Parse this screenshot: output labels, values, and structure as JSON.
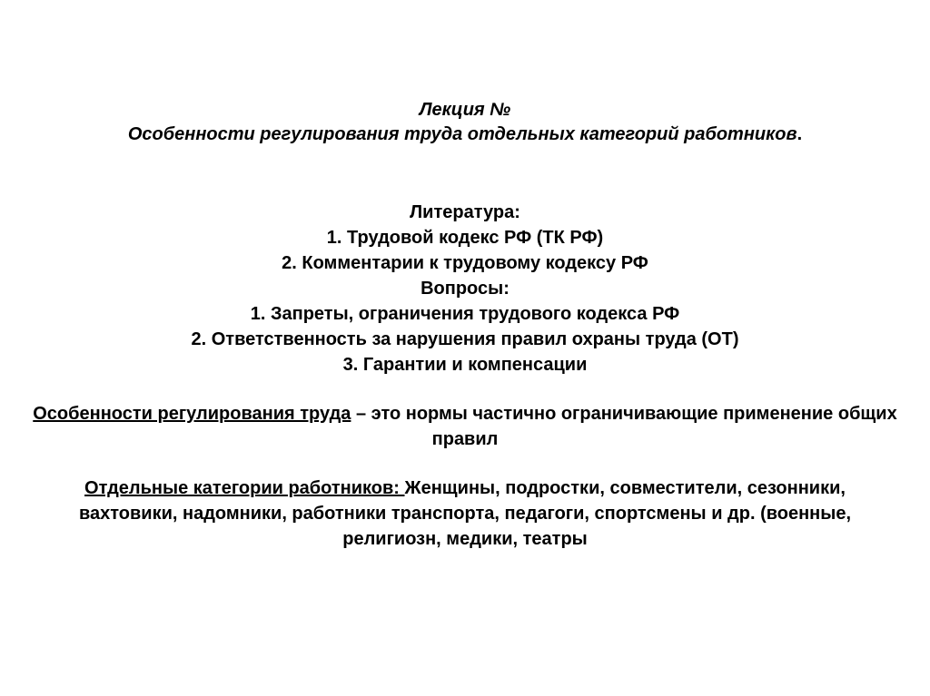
{
  "title": {
    "lecture": "Лекция №",
    "subtitle": "Особенности регулирования труда отдельных категорий работников",
    "period": "."
  },
  "literature": {
    "heading": "Литература:",
    "item1": "1.   Трудовой кодекс РФ (ТК РФ)",
    "item2": "2.   Комментарии к трудовому кодексу РФ"
  },
  "questions": {
    "heading": "Вопросы:",
    "item1": "1.   Запреты, ограничения трудового кодекса РФ",
    "item2": "2.   Ответственность за нарушения правил  охраны труда (ОТ)",
    "item3": "3.   Гарантии и компенсации"
  },
  "definition": {
    "underlined_term": "Особенности регулирования труда",
    "rest": " – это нормы частично ограничивающие применение общих правил"
  },
  "categories": {
    "underlined_term": "Отдельные категории работников: ",
    "rest": "Женщины, подростки, совместители, сезонники, вахтовики, надомники, работники транспорта, педагоги, спортсмены и др. (военные, религиозн, медики, театры"
  },
  "style": {
    "background_color": "#ffffff",
    "text_color": "#000000",
    "title_fontsize": 20,
    "body_fontsize": 20,
    "font_weight": "bold"
  }
}
